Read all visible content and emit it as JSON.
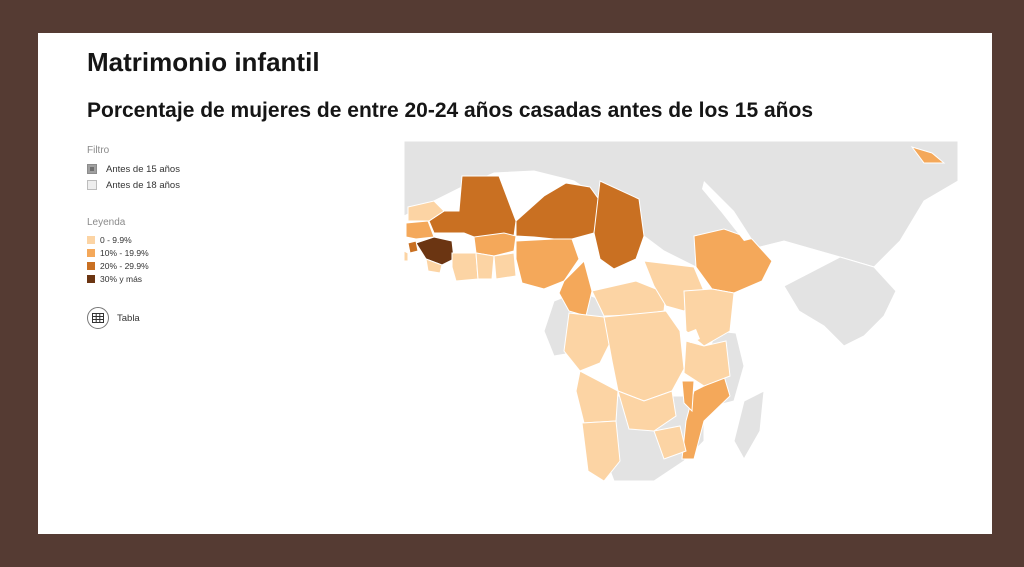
{
  "header": {
    "title": "Matrimonio infantil",
    "subtitle": "Porcentaje de mujeres de entre 20-24 años casadas antes de los 15 años"
  },
  "filter": {
    "label": "Filtro",
    "options": [
      {
        "label": "Antes de 15 años",
        "checked": true
      },
      {
        "label": "Antes de 18 años",
        "checked": false
      }
    ]
  },
  "legend": {
    "label": "Leyenda",
    "items": [
      {
        "label": "0 - 9.9%",
        "color": "#fcd4a4"
      },
      {
        "label": "10% - 19.9%",
        "color": "#f4a85a"
      },
      {
        "label": "20% - 29.9%",
        "color": "#c97022"
      },
      {
        "label": "30% y más",
        "color": "#6b3512"
      }
    ]
  },
  "table_button": {
    "label": "Tabla",
    "icon": "table-grid-icon"
  },
  "map": {
    "no_data_color": "#e3e3e3",
    "water_color": "#ffffff",
    "border_color": "#ffffff"
  }
}
